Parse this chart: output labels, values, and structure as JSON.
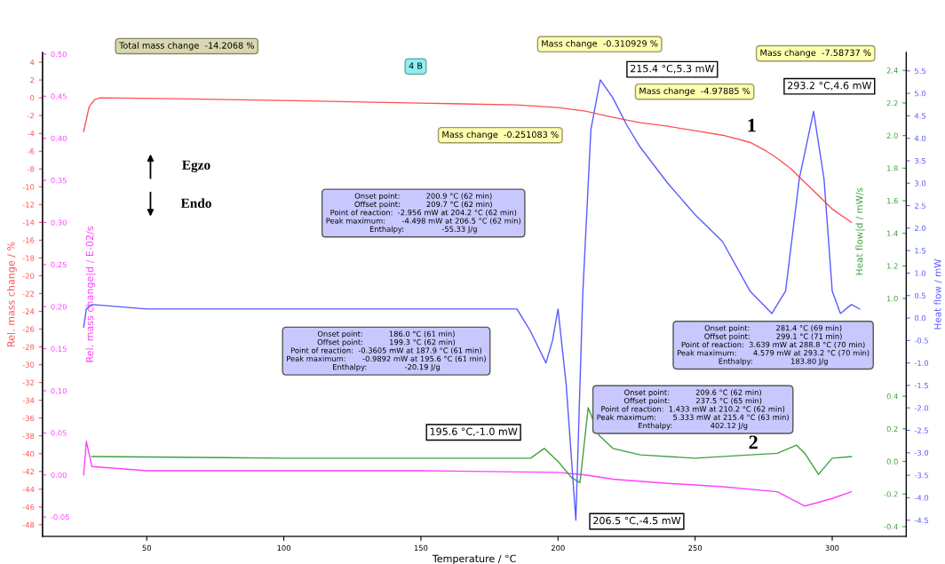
{
  "chart_data": [
    {
      "type": "line",
      "xlabel": "Temperature / °C",
      "ylabel": "Rel. mass change / %",
      "y2label": "Rel. mass change|d / E-02/s",
      "xlim": [
        12,
        327
      ],
      "xticks": [
        50,
        100,
        150,
        200,
        250,
        300
      ],
      "ylim": [
        -49.3,
        5.1
      ],
      "yticks": [
        -48,
        -46,
        -44,
        -42,
        -40,
        -38,
        -36,
        -34,
        -32,
        -30,
        -28,
        -26,
        -24,
        -22,
        -20,
        -18,
        -16,
        -14,
        -12,
        -10,
        -8,
        -6,
        -4,
        -2,
        0,
        2,
        4
      ],
      "y2lim": [
        -0.073,
        0.502
      ],
      "y2ticks": [
        {
          "value": -0.05,
          "label": "-0.05"
        },
        {
          "value": 0,
          "label": "0.00"
        },
        {
          "value": 0.05,
          "label": "0.05"
        },
        {
          "value": 0.1,
          "label": "0.10"
        },
        {
          "value": 0.15,
          "label": "0.15"
        },
        {
          "value": 0.2,
          "label": "0.20"
        },
        {
          "value": 0.25,
          "label": "0.25"
        },
        {
          "value": 0.3,
          "label": "0.30"
        },
        {
          "value": 0.35,
          "label": "0.35"
        },
        {
          "value": 0.4,
          "label": "0.40"
        },
        {
          "value": 0.45,
          "label": "0.45"
        },
        {
          "value": 0.5,
          "label": "0.50"
        }
      ],
      "grid": false,
      "series": [
        {
          "color": "#ff5050",
          "x": [
            27,
            29,
            31,
            33,
            60,
            100,
            150,
            185,
            200,
            210,
            220,
            230,
            240,
            250,
            260,
            270,
            276,
            280,
            285,
            290,
            295,
            300,
            307
          ],
          "values": [
            -3.8,
            -1.0,
            -0.2,
            0,
            -0.1,
            -0.3,
            -0.6,
            -0.8,
            -1.1,
            -1.5,
            -2.2,
            -2.8,
            -3.2,
            -3.7,
            -4.2,
            -5.0,
            -6.0,
            -6.8,
            -8.0,
            -9.5,
            -11.0,
            -12.5,
            -14.0
          ]
        },
        {
          "color": "#ff40ff",
          "axis": "y2",
          "x": [
            27,
            28,
            30,
            50,
            100,
            150,
            200,
            210,
            220,
            240,
            260,
            280,
            290,
            300,
            307
          ],
          "values": [
            0.0,
            0.04,
            0.01,
            0.005,
            0.005,
            0.005,
            0.003,
            0.0,
            -0.005,
            -0.01,
            -0.014,
            -0.02,
            -0.037,
            -0.028,
            -0.02
          ]
        }
      ],
      "annotations": [
        "Total mass change  -14.2068 %",
        "4 B",
        "Mass change  -0.310929 %",
        "Mass change  -4.97885 %",
        "Mass change  -7.58737 %",
        "Mass change  -0.251083 %",
        "215.4 °C,5.3 mW",
        "293.2 °C,4.6 mW",
        "195.6 °C,-1.0 mW",
        "206.5 °C,-4.5 mW",
        "1",
        "2",
        "Egzo",
        "Endo",
        "Onset point:           200.9 °C (62 min)\nOffset point:           209.7 °C (62 min)\nPoint of reaction:  -2.956 mW at 204.2 °C (62 min)\nPeak maximum:       -4.498 mW at 206.5 °C (62 min)\nEnthalpy:                -55.33 J/g",
        "Onset point:           186.0 °C (61 min)\nOffset point:           199.3 °C (62 min)\nPoint of reaction:  -0.3605 mW at 187.9 °C (61 min)\nPeak maximum:       -0.9892 mW at 195.6 °C (61 min)\nEnthalpy:                -20.19 J/g",
        "Onset point:           209.6 °C (62 min)\nOffset point:           237.5 °C (65 min)\nPoint of reaction:  1.433 mW at 210.2 °C (62 min)\nPeak maximum:       5.333 mW at 215.4 °C (63 min)\nEnthalpy:                402.12 J/g",
        "Onset point:           281.4 °C (69 min)\nOffset point:           299.1 °C (71 min)\nPoint of reaction:  3.639 mW at 288.8 °C (70 min)\nPeak maximum:       4.579 mW at 293.2 °C (70 min)\nEnthalpy:                183.80 J/g"
      ]
    },
    {
      "type": "line",
      "ylabel": "Heat flow|d / mW/s",
      "y2label": "Heat flow / mW",
      "tick_labels": "y",
      "xlim": [
        12,
        327
      ],
      "ylim": [
        -0.46,
        2.51
      ],
      "yticks": [
        -0.4,
        -0.2,
        {
          "value": 0,
          "label": "0.0"
        },
        0.2,
        0.4,
        {
          "value": 1,
          "label": "1.0"
        },
        1.2,
        1.4,
        1.6,
        1.8,
        {
          "value": 2,
          "label": "2.0"
        },
        2.2,
        2.4
      ],
      "y2lim": [
        -4.86,
        5.91
      ],
      "y2ticks": [
        -4.5,
        {
          "value": -4,
          "label": "-4.0"
        },
        -3.5,
        {
          "value": -3,
          "label": "-3.0"
        },
        -2.5,
        {
          "value": -2,
          "label": "-2.0"
        },
        -1.5,
        {
          "value": -1,
          "label": "-1.0"
        },
        -0.5,
        {
          "value": 0,
          "label": "0.0"
        },
        0.5,
        {
          "value": 1,
          "label": "1.0"
        },
        1.5,
        {
          "value": 2,
          "label": "2.0"
        },
        2.5,
        {
          "value": 3,
          "label": "3.0"
        },
        3.5,
        {
          "value": 4,
          "label": "4.0"
        },
        4.5,
        {
          "value": 5,
          "label": "5.0"
        },
        5.5
      ],
      "grid": false,
      "series": [
        {
          "color": "#40a040",
          "x": [
            30,
            100,
            150,
            190,
            195,
            200,
            205,
            208,
            211,
            215,
            220,
            230,
            250,
            270,
            280,
            287,
            290,
            295,
            300,
            307
          ],
          "values": [
            0.03,
            0.02,
            0.02,
            0.02,
            0.08,
            0.0,
            -0.1,
            -0.13,
            0.33,
            0.16,
            0.08,
            0.04,
            0.02,
            0.04,
            0.05,
            0.1,
            0.05,
            -0.08,
            0.02,
            0.03
          ]
        },
        {
          "color": "#5a5aff",
          "axis": "y2",
          "x": [
            27,
            28,
            30,
            50,
            100,
            150,
            185,
            190,
            195.6,
            198,
            200,
            203,
            206.5,
            209,
            212,
            215.4,
            220,
            225,
            230,
            240,
            250,
            260,
            270,
            278,
            283,
            288,
            293.2,
            297,
            300,
            303,
            307,
            310
          ],
          "values": [
            -0.2,
            0.2,
            0.3,
            0.2,
            0.2,
            0.2,
            0.2,
            -0.3,
            -1.0,
            -0.5,
            0.2,
            -1.5,
            -4.5,
            0.5,
            4.2,
            5.3,
            4.9,
            4.3,
            3.8,
            3.0,
            2.3,
            1.7,
            0.6,
            0.1,
            0.6,
            3.1,
            4.6,
            3.1,
            0.6,
            0.1,
            0.3,
            0.2
          ]
        }
      ]
    }
  ]
}
